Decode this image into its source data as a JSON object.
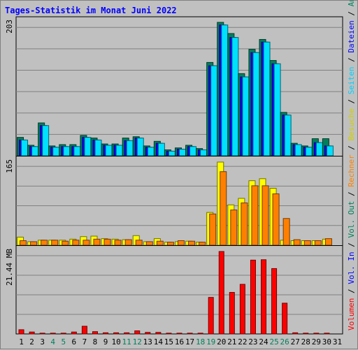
{
  "title": "Tages-Statistik im Monat Juni 2022",
  "chart_data": {
    "type": "bar",
    "days": [
      "1",
      "2",
      "3",
      "4",
      "5",
      "6",
      "7",
      "8",
      "9",
      "10",
      "11",
      "12",
      "13",
      "14",
      "15",
      "16",
      "17",
      "18",
      "19",
      "20",
      "21",
      "22",
      "23",
      "24",
      "25",
      "26",
      "27",
      "28",
      "29",
      "30",
      "31"
    ],
    "weekend_days": [
      "4",
      "5",
      "11",
      "12",
      "18",
      "19",
      "25",
      "26"
    ],
    "panels": [
      {
        "id": "requests",
        "ymax_label": "203",
        "series": [
          {
            "name": "Anfragen",
            "color": "#00805c",
            "values": [
              28,
              16,
              50,
              15,
              17,
              17,
              31,
              27,
              18,
              18,
              27,
              29,
              15,
              22,
              9,
              12,
              16,
              11,
              142,
              203,
              186,
              125,
              162,
              177,
              145,
              66,
              19,
              15,
              26,
              26,
              0
            ]
          },
          {
            "name": "Dateien",
            "color": "#0000ff",
            "values": [
              24,
              14,
              46,
              13,
              14,
              14,
              28,
              24,
              16,
              16,
              23,
              27,
              13,
              19,
              7,
              10,
              14,
              9,
              137,
              199,
              180,
              120,
              157,
              173,
              140,
              62,
              17,
              13,
              20,
              15,
              0
            ]
          },
          {
            "name": "Seiten",
            "color": "#00e0ff",
            "values": [
              24,
              14,
              46,
              13,
              14,
              14,
              28,
              24,
              16,
              16,
              23,
              27,
              13,
              19,
              7,
              10,
              14,
              9,
              137,
              199,
              180,
              120,
              157,
              173,
              140,
              62,
              17,
              13,
              20,
              15,
              0
            ]
          }
        ]
      },
      {
        "id": "visits",
        "ymax_label": "165",
        "series": [
          {
            "name": "Besuche",
            "color": "#ffff00",
            "values": [
              16,
              7,
              10,
              10,
              10,
              12,
              17,
              18,
              13,
              12,
              11,
              19,
              7,
              13,
              6,
              7,
              8,
              6,
              65,
              165,
              80,
              93,
              128,
              132,
              113,
              10,
              9,
              9,
              9,
              12,
              0
            ]
          },
          {
            "name": "Rechner",
            "color": "#ff8000",
            "values": [
              9,
              7,
              10,
              10,
              8,
              10,
              10,
              12,
              12,
              10,
              11,
              10,
              7,
              8,
              6,
              9,
              8,
              6,
              62,
              146,
              70,
              84,
              118,
              118,
              102,
              53,
              11,
              9,
              9,
              13,
              0
            ]
          }
        ]
      },
      {
        "id": "volume",
        "ymax_label": "21.44 MB",
        "series": [
          {
            "name": "Volumen",
            "color": "#ff0000",
            "values": [
              1.1,
              0.5,
              0.2,
              0.2,
              0.2,
              0.5,
              2.0,
              0.6,
              0.3,
              0.3,
              0.3,
              0.8,
              0.4,
              0.4,
              0.2,
              0.2,
              0.2,
              0.2,
              9.5,
              21.44,
              10.8,
              12.9,
              19.2,
              19.3,
              17.0,
              8.0,
              0.3,
              0.2,
              0.2,
              0.2,
              0
            ]
          }
        ]
      }
    ],
    "legend_right": [
      {
        "text": "Volumen",
        "color": "#ff0000"
      },
      {
        "text": "/",
        "color": "#000000"
      },
      {
        "text": "Vol. In",
        "color": "#0000ff"
      },
      {
        "text": "/",
        "color": "#000000"
      },
      {
        "text": "Vol. Out",
        "color": "#00805c"
      },
      {
        "text": "/",
        "color": "#000000"
      },
      {
        "text": "Rechner",
        "color": "#ff8000"
      },
      {
        "text": "/",
        "color": "#000000"
      },
      {
        "text": "Besuche",
        "color": "#d0d000"
      },
      {
        "text": "/",
        "color": "#000000"
      },
      {
        "text": "Seiten",
        "color": "#00d0ff"
      },
      {
        "text": "/",
        "color": "#000000"
      },
      {
        "text": "Dateien",
        "color": "#0000ff"
      },
      {
        "text": "/",
        "color": "#000000"
      },
      {
        "text": "Anfragen",
        "color": "#00805c"
      }
    ],
    "colors": {
      "plot_background": "#c0c0c0",
      "grid": "#808080",
      "weekday_label": "#000000",
      "weekend_label": "#00805c"
    }
  }
}
